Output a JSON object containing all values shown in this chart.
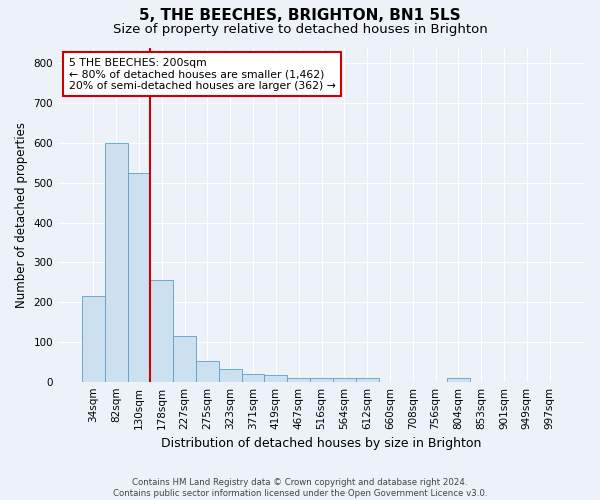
{
  "title": "5, THE BEECHES, BRIGHTON, BN1 5LS",
  "subtitle": "Size of property relative to detached houses in Brighton",
  "xlabel": "Distribution of detached houses by size in Brighton",
  "ylabel": "Number of detached properties",
  "footnote": "Contains HM Land Registry data © Crown copyright and database right 2024.\nContains public sector information licensed under the Open Government Licence v3.0.",
  "bar_labels": [
    "34sqm",
    "82sqm",
    "130sqm",
    "178sqm",
    "227sqm",
    "275sqm",
    "323sqm",
    "371sqm",
    "419sqm",
    "467sqm",
    "516sqm",
    "564sqm",
    "612sqm",
    "660sqm",
    "708sqm",
    "756sqm",
    "804sqm",
    "853sqm",
    "901sqm",
    "949sqm",
    "997sqm"
  ],
  "bar_values": [
    215,
    600,
    525,
    255,
    115,
    52,
    32,
    20,
    16,
    10,
    10,
    10,
    9,
    0,
    0,
    0,
    9,
    0,
    0,
    0,
    0
  ],
  "bar_color": "#cce0f0",
  "bar_edge_color": "#5b9ec9",
  "vline_x": 2.5,
  "vline_color": "#cc0000",
  "annotation_text": "5 THE BEECHES: 200sqm\n← 80% of detached houses are smaller (1,462)\n20% of semi-detached houses are larger (362) →",
  "annotation_box_color": "#ffffff",
  "annotation_box_edge_color": "#cc0000",
  "ylim": [
    0,
    840
  ],
  "yticks": [
    0,
    100,
    200,
    300,
    400,
    500,
    600,
    700,
    800
  ],
  "background_color": "#edf2f8",
  "grid_color": "#ffffff",
  "title_fontsize": 11,
  "subtitle_fontsize": 9.5,
  "xlabel_fontsize": 9,
  "ylabel_fontsize": 8.5,
  "tick_fontsize": 7.5,
  "annotation_fontsize": 7.8,
  "footnote_fontsize": 6.2
}
